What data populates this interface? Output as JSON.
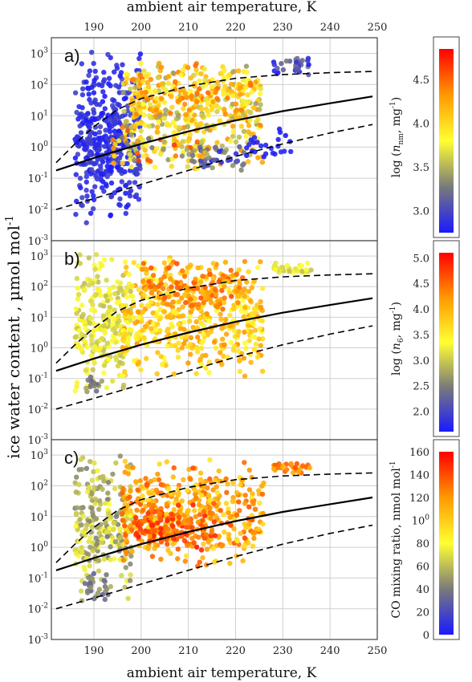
{
  "figure": {
    "top_xlabel": "ambient air temperature, K",
    "bottom_xlabel": "ambient air temperature, K",
    "ylabel": "ice water content , µmol mol",
    "ylabel_sup": "-1"
  },
  "chart_data": [
    {
      "type": "scatter",
      "panel": "a)",
      "xlim": [
        181,
        250
      ],
      "ylim_log10": [
        -3,
        3.5
      ],
      "x_ticks": [
        "190",
        "200",
        "210",
        "220",
        "230",
        "240",
        "250"
      ],
      "y_ticks": [
        "10-3",
        "10-2",
        "10-1",
        "100",
        "101",
        "102",
        "103"
      ],
      "grid": true,
      "colorbar": {
        "label": "log (n_nm, mg-1)",
        "ticks": [
          "3.0",
          "3.5",
          "4.0",
          "4.5"
        ],
        "range": [
          2.75,
          4.85
        ],
        "colors": [
          "#1a1aff",
          "#7a7a7a",
          "#ffff33",
          "#ff9900",
          "#ff0000"
        ]
      },
      "curves": {
        "solid_log10": [
          [
            182,
            -0.75
          ],
          [
            190,
            -0.35
          ],
          [
            200,
            0.1
          ],
          [
            210,
            0.5
          ],
          [
            220,
            0.85
          ],
          [
            230,
            1.15
          ],
          [
            240,
            1.4
          ],
          [
            249,
            1.62
          ]
        ],
        "dashed_upper_log10": [
          [
            182,
            -0.5
          ],
          [
            186,
            0.1
          ],
          [
            190,
            0.65
          ],
          [
            195,
            1.2
          ],
          [
            200,
            1.55
          ],
          [
            210,
            1.95
          ],
          [
            220,
            2.2
          ],
          [
            230,
            2.32
          ],
          [
            240,
            2.38
          ],
          [
            249,
            2.42
          ]
        ],
        "dashed_lower_log10": [
          [
            182,
            -2.0
          ],
          [
            190,
            -1.65
          ],
          [
            200,
            -1.2
          ],
          [
            210,
            -0.75
          ],
          [
            220,
            -0.3
          ],
          [
            230,
            0.1
          ],
          [
            240,
            0.45
          ],
          [
            249,
            0.72
          ]
        ]
      },
      "clusters": [
        {
          "x": [
            186,
            200
          ],
          "y": [
            -2.6,
            3.3
          ],
          "value": [
            2.75,
            3.0
          ],
          "n": 340
        },
        {
          "x": [
            188,
            196
          ],
          "y": [
            -1.2,
            1.3
          ],
          "value": [
            2.75,
            3.0
          ],
          "n": 90
        },
        {
          "x": [
            196,
            226
          ],
          "y": [
            -0.8,
            2.8
          ],
          "value": [
            3.4,
            4.4
          ],
          "n": 360
        },
        {
          "x": [
            198,
            224
          ],
          "y": [
            0.8,
            2.8
          ],
          "value": [
            3.7,
            4.5
          ],
          "n": 140
        },
        {
          "x": [
            212,
            222
          ],
          "y": [
            -0.8,
            0.2
          ],
          "value": [
            2.8,
            3.4
          ],
          "n": 40
        },
        {
          "x": [
            228,
            236
          ],
          "y": [
            2.3,
            2.9
          ],
          "value": [
            2.75,
            3.3
          ],
          "n": 30
        },
        {
          "x": [
            194,
            214
          ],
          "y": [
            -0.9,
            0.8
          ],
          "value": [
            3.2,
            4.7
          ],
          "n": 80
        },
        {
          "x": [
            222,
            232
          ],
          "y": [
            -0.6,
            0.8
          ],
          "value": [
            2.75,
            2.85
          ],
          "n": 25
        }
      ]
    },
    {
      "type": "scatter",
      "panel": "b)",
      "xlim": [
        181,
        250
      ],
      "ylim_log10": [
        -3,
        3.5
      ],
      "x_ticks": [
        "190",
        "200",
        "210",
        "220",
        "230",
        "240",
        "250"
      ],
      "y_ticks": [
        "10-3",
        "10-2",
        "10-1",
        "100",
        "101",
        "102",
        "103"
      ],
      "grid": true,
      "colorbar": {
        "label": "log (n6, mg-1)",
        "ticks": [
          "2.0",
          "2.5",
          "3.0",
          "3.5",
          "4.0",
          "4.5",
          "5.0"
        ],
        "range": [
          1.6,
          5.1
        ],
        "colors": [
          "#1a1aff",
          "#7a7a7a",
          "#ffff33",
          "#ff9900",
          "#ff0000"
        ]
      },
      "curves": {
        "solid_log10": [
          [
            182,
            -0.75
          ],
          [
            190,
            -0.35
          ],
          [
            200,
            0.1
          ],
          [
            210,
            0.5
          ],
          [
            220,
            0.85
          ],
          [
            230,
            1.15
          ],
          [
            240,
            1.4
          ],
          [
            249,
            1.62
          ]
        ],
        "dashed_upper_log10": [
          [
            182,
            -0.5
          ],
          [
            186,
            0.1
          ],
          [
            190,
            0.65
          ],
          [
            195,
            1.2
          ],
          [
            200,
            1.55
          ],
          [
            210,
            1.95
          ],
          [
            220,
            2.2
          ],
          [
            230,
            2.32
          ],
          [
            240,
            2.38
          ],
          [
            249,
            2.42
          ]
        ],
        "dashed_lower_log10": [
          [
            182,
            -2.0
          ],
          [
            190,
            -1.65
          ],
          [
            200,
            -1.2
          ],
          [
            210,
            -0.75
          ],
          [
            220,
            -0.3
          ],
          [
            230,
            0.1
          ],
          [
            240,
            0.45
          ],
          [
            249,
            0.72
          ]
        ]
      },
      "clusters": [
        {
          "x": [
            186,
            198
          ],
          "y": [
            -1.8,
            3.3
          ],
          "value": [
            2.9,
            3.5
          ],
          "n": 260
        },
        {
          "x": [
            196,
            226
          ],
          "y": [
            -1.0,
            3.0
          ],
          "value": [
            3.3,
            4.3
          ],
          "n": 460
        },
        {
          "x": [
            200,
            222
          ],
          "y": [
            1.0,
            2.9
          ],
          "value": [
            3.8,
            4.7
          ],
          "n": 140
        },
        {
          "x": [
            228,
            236
          ],
          "y": [
            2.4,
            2.8
          ],
          "value": [
            2.9,
            3.4
          ],
          "n": 30
        },
        {
          "x": [
            188,
            192
          ],
          "y": [
            -1.6,
            -0.9
          ],
          "value": [
            2.1,
            2.8
          ],
          "n": 18
        }
      ]
    },
    {
      "type": "scatter",
      "panel": "c)",
      "xlim": [
        181,
        250
      ],
      "ylim_log10": [
        -3,
        3.5
      ],
      "x_ticks": [
        "190",
        "200",
        "210",
        "220",
        "230",
        "240",
        "250"
      ],
      "y_ticks": [
        "10-3",
        "10-2",
        "10-1",
        "100",
        "101",
        "102",
        "103"
      ],
      "grid": true,
      "colorbar": {
        "label": "CO mixing ratio, nmol mol-1",
        "ticks": [
          "0",
          "20",
          "40",
          "60",
          "80",
          "100",
          "120",
          "140",
          "160"
        ],
        "range": [
          0,
          160
        ],
        "colors": [
          "#1a1aff",
          "#7a7a7a",
          "#ffff33",
          "#ff9900",
          "#ff0000"
        ]
      },
      "curves": {
        "solid_log10": [
          [
            182,
            -0.75
          ],
          [
            190,
            -0.35
          ],
          [
            200,
            0.1
          ],
          [
            210,
            0.5
          ],
          [
            220,
            0.85
          ],
          [
            230,
            1.15
          ],
          [
            240,
            1.4
          ],
          [
            249,
            1.62
          ]
        ],
        "dashed_upper_log10": [
          [
            182,
            -0.5
          ],
          [
            186,
            0.1
          ],
          [
            190,
            0.65
          ],
          [
            195,
            1.2
          ],
          [
            200,
            1.55
          ],
          [
            210,
            1.95
          ],
          [
            220,
            2.2
          ],
          [
            230,
            2.32
          ],
          [
            240,
            2.38
          ],
          [
            249,
            2.42
          ]
        ],
        "dashed_lower_log10": [
          [
            182,
            -2.0
          ],
          [
            190,
            -1.65
          ],
          [
            200,
            -1.2
          ],
          [
            210,
            -0.75
          ],
          [
            220,
            -0.3
          ],
          [
            230,
            0.1
          ],
          [
            240,
            0.45
          ],
          [
            249,
            0.72
          ]
        ]
      },
      "clusters": [
        {
          "x": [
            186,
            198
          ],
          "y": [
            -1.8,
            3.3
          ],
          "value": [
            40,
            80
          ],
          "n": 240
        },
        {
          "x": [
            196,
            226
          ],
          "y": [
            -0.8,
            3.0
          ],
          "value": [
            90,
            140
          ],
          "n": 420
        },
        {
          "x": [
            198,
            216
          ],
          "y": [
            -0.2,
            1.5
          ],
          "value": [
            120,
            155
          ],
          "n": 120
        },
        {
          "x": [
            228,
            236
          ],
          "y": [
            2.4,
            2.8
          ],
          "value": [
            110,
            140
          ],
          "n": 30
        },
        {
          "x": [
            188,
            193
          ],
          "y": [
            -1.8,
            -0.7
          ],
          "value": [
            30,
            50
          ],
          "n": 25
        }
      ]
    }
  ]
}
